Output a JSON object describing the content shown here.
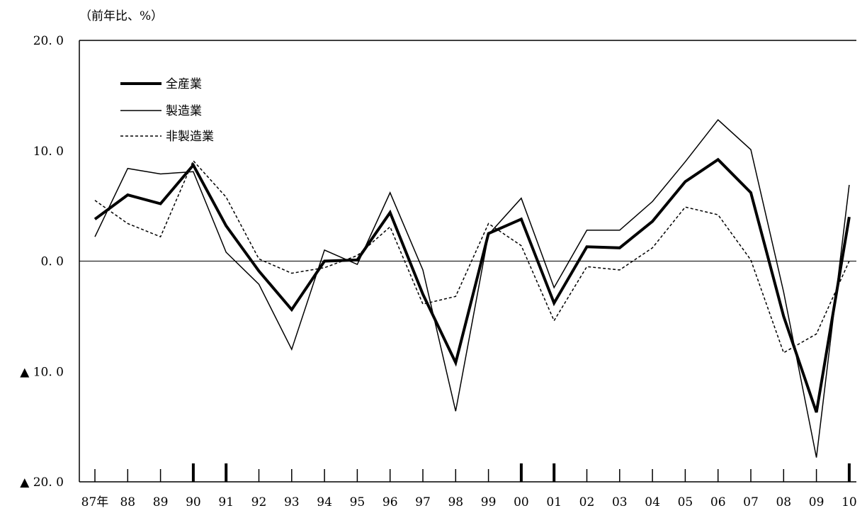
{
  "chart_data": {
    "type": "line",
    "unit_label": "（前年比、%）",
    "title": "",
    "xlabel": "",
    "ylabel": "",
    "x": [
      "87年",
      "88",
      "89",
      "90",
      "91",
      "92",
      "93",
      "94",
      "95",
      "96",
      "97",
      "98",
      "99",
      "00",
      "01",
      "02",
      "03",
      "04",
      "05",
      "06",
      "07",
      "08",
      "09",
      "10"
    ],
    "ylim": [
      -20,
      20
    ],
    "y_ticks": [
      {
        "value": 20,
        "label": "20. 0"
      },
      {
        "value": 10,
        "label": "10. 0"
      },
      {
        "value": 0,
        "label": "0. 0"
      },
      {
        "value": -10,
        "label": "▲ 10. 0"
      },
      {
        "value": -20,
        "label": "▲ 20. 0"
      }
    ],
    "zero_line": true,
    "grid": false,
    "legend_position": "top-left",
    "emphasized_x_ticks": [
      "90",
      "91",
      "00",
      "01",
      "10"
    ],
    "series": [
      {
        "name": "全産業",
        "style": "thick",
        "color": "#000000",
        "values": [
          3.8,
          6.0,
          5.2,
          8.7,
          3.2,
          -0.9,
          -4.4,
          0.0,
          0.1,
          4.4,
          -3.0,
          -9.2,
          2.5,
          3.8,
          -3.8,
          1.3,
          1.2,
          3.6,
          7.2,
          9.2,
          6.2,
          -5.0,
          -13.7,
          4.0
        ]
      },
      {
        "name": "製造業",
        "style": "thin",
        "color": "#000000",
        "values": [
          2.2,
          8.4,
          7.9,
          8.1,
          0.8,
          -2.1,
          -8.0,
          1.0,
          -0.3,
          6.2,
          -0.8,
          -13.6,
          2.4,
          5.7,
          -2.4,
          2.8,
          2.8,
          5.4,
          9.0,
          12.8,
          10.1,
          -2.8,
          -17.8,
          6.9
        ]
      },
      {
        "name": "非製造業",
        "style": "dashed",
        "color": "#000000",
        "values": [
          5.5,
          3.4,
          2.2,
          9.1,
          5.8,
          0.2,
          -1.1,
          -0.6,
          0.5,
          3.1,
          -3.9,
          -3.2,
          3.4,
          1.4,
          -5.4,
          -0.5,
          -0.8,
          1.2,
          4.9,
          4.2,
          0.1,
          -8.3,
          -6.6,
          0.0
        ]
      }
    ]
  }
}
